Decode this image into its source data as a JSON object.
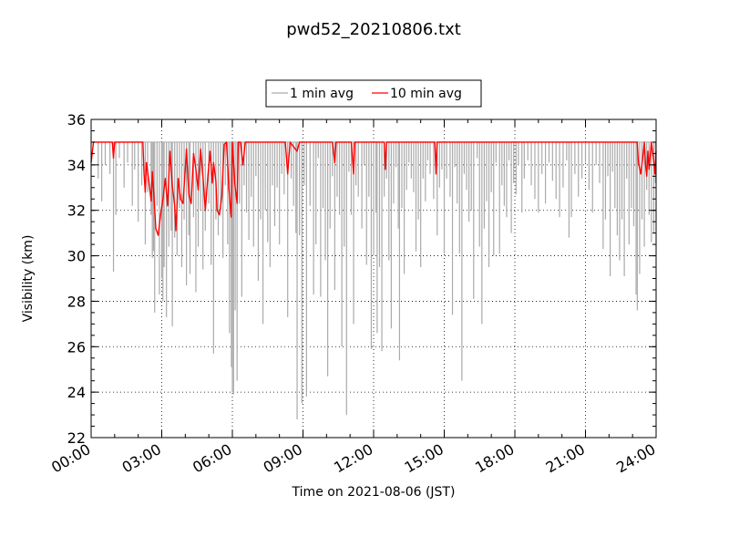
{
  "chart_data": {
    "type": "line",
    "title": "pwd52_20210806.txt",
    "xlabel": "Time on 2021-08-06 (JST)",
    "ylabel": "Visibility (km)",
    "xlim": [
      0,
      24
    ],
    "ylim": [
      22,
      36
    ],
    "x_ticks": [
      "00:00",
      "03:00",
      "06:00",
      "09:00",
      "12:00",
      "15:00",
      "18:00",
      "21:00",
      "24:00"
    ],
    "y_ticks": [
      22,
      24,
      26,
      28,
      30,
      32,
      34,
      36
    ],
    "grid": true,
    "legend": "top-center",
    "series": [
      {
        "name": "1 min avg",
        "color": "#aaaaaa",
        "baseline": 35,
        "dips": [
          [
            0.3,
            33.4
          ],
          [
            0.45,
            32.4
          ],
          [
            0.6,
            34.0
          ],
          [
            0.8,
            33.6
          ],
          [
            0.95,
            29.3
          ],
          [
            1.05,
            31.8
          ],
          [
            1.2,
            34.3
          ],
          [
            1.4,
            33.0
          ],
          [
            1.55,
            34.1
          ],
          [
            1.75,
            32.2
          ],
          [
            1.85,
            33.8
          ],
          [
            2.0,
            31.5
          ],
          [
            2.15,
            33.1
          ],
          [
            2.3,
            30.5
          ],
          [
            2.4,
            32.8
          ],
          [
            2.55,
            31.8
          ],
          [
            2.6,
            29.9
          ],
          [
            2.65,
            30.2
          ],
          [
            2.7,
            27.5
          ],
          [
            2.8,
            32.2
          ],
          [
            2.9,
            28.3
          ],
          [
            3.0,
            29.0
          ],
          [
            3.05,
            28.0
          ],
          [
            3.1,
            29.5
          ],
          [
            3.2,
            27.3
          ],
          [
            3.3,
            30.4
          ],
          [
            3.4,
            31.1
          ],
          [
            3.45,
            26.9
          ],
          [
            3.55,
            30.8
          ],
          [
            3.65,
            30.0
          ],
          [
            3.75,
            32.1
          ],
          [
            3.85,
            29.5
          ],
          [
            3.95,
            31.6
          ],
          [
            4.05,
            28.7
          ],
          [
            4.15,
            30.9
          ],
          [
            4.2,
            29.2
          ],
          [
            4.35,
            31.7
          ],
          [
            4.45,
            28.4
          ],
          [
            4.55,
            30.4
          ],
          [
            4.65,
            32.0
          ],
          [
            4.75,
            29.4
          ],
          [
            4.85,
            31.1
          ],
          [
            5.0,
            32.3
          ],
          [
            5.1,
            29.6
          ],
          [
            5.2,
            25.7
          ],
          [
            5.3,
            31.6
          ],
          [
            5.4,
            30.9
          ],
          [
            5.5,
            32.0
          ],
          [
            5.6,
            29.9
          ],
          [
            5.7,
            33.1
          ],
          [
            5.8,
            30.5
          ],
          [
            5.88,
            26.6
          ],
          [
            5.96,
            25.1
          ],
          [
            6.0,
            24.0
          ],
          [
            6.05,
            23.9
          ],
          [
            6.12,
            27.6
          ],
          [
            6.2,
            24.5
          ],
          [
            6.3,
            32.3
          ],
          [
            6.4,
            28.2
          ],
          [
            6.5,
            33.1
          ],
          [
            6.6,
            31.9
          ],
          [
            6.7,
            30.7
          ],
          [
            6.8,
            32.6
          ],
          [
            6.9,
            30.4
          ],
          [
            7.0,
            33.5
          ],
          [
            7.1,
            28.9
          ],
          [
            7.2,
            31.6
          ],
          [
            7.3,
            27.0
          ],
          [
            7.4,
            32.0
          ],
          [
            7.5,
            30.6
          ],
          [
            7.6,
            29.5
          ],
          [
            7.7,
            33.1
          ],
          [
            7.8,
            31.3
          ],
          [
            7.9,
            33.0
          ],
          [
            8.0,
            30.5
          ],
          [
            8.1,
            33.6
          ],
          [
            8.2,
            32.7
          ],
          [
            8.35,
            27.3
          ],
          [
            8.5,
            33.4
          ],
          [
            8.6,
            32.2
          ],
          [
            8.7,
            31.0
          ],
          [
            8.75,
            22.8
          ],
          [
            8.85,
            30.9
          ],
          [
            8.95,
            23.5
          ],
          [
            9.05,
            33.1
          ],
          [
            9.15,
            23.8
          ],
          [
            9.3,
            32.2
          ],
          [
            9.45,
            28.3
          ],
          [
            9.55,
            30.5
          ],
          [
            9.65,
            34.3
          ],
          [
            9.75,
            28.2
          ],
          [
            9.85,
            32.1
          ],
          [
            9.95,
            29.8
          ],
          [
            10.05,
            24.7
          ],
          [
            10.15,
            31.2
          ],
          [
            10.25,
            33.5
          ],
          [
            10.35,
            28.5
          ],
          [
            10.45,
            32.6
          ],
          [
            10.55,
            31.8
          ],
          [
            10.65,
            26.0
          ],
          [
            10.75,
            30.4
          ],
          [
            10.85,
            23.0
          ],
          [
            10.95,
            33.7
          ],
          [
            11.05,
            31.8
          ],
          [
            11.15,
            27.0
          ],
          [
            11.25,
            33.1
          ],
          [
            11.35,
            32.6
          ],
          [
            11.5,
            31.2
          ],
          [
            11.6,
            34.0
          ],
          [
            11.7,
            29.6
          ],
          [
            11.8,
            32.6
          ],
          [
            11.9,
            25.9
          ],
          [
            12.0,
            30.0
          ],
          [
            12.1,
            31.9
          ],
          [
            12.15,
            26.6
          ],
          [
            12.25,
            29.5
          ],
          [
            12.35,
            25.8
          ],
          [
            12.45,
            32.6
          ],
          [
            12.55,
            33.4
          ],
          [
            12.65,
            29.8
          ],
          [
            12.75,
            26.8
          ],
          [
            12.85,
            32.3
          ],
          [
            12.95,
            33.9
          ],
          [
            13.05,
            31.2
          ],
          [
            13.1,
            25.4
          ],
          [
            13.2,
            32.1
          ],
          [
            13.3,
            29.2
          ],
          [
            13.4,
            32.9
          ],
          [
            13.5,
            34.1
          ],
          [
            13.6,
            33.4
          ],
          [
            13.7,
            32.8
          ],
          [
            13.8,
            30.2
          ],
          [
            13.9,
            31.6
          ],
          [
            14.0,
            29.5
          ],
          [
            14.1,
            33.4
          ],
          [
            14.2,
            32.4
          ],
          [
            14.3,
            34.2
          ],
          [
            14.4,
            33.6
          ],
          [
            14.55,
            32.5
          ],
          [
            14.7,
            30.9
          ],
          [
            14.8,
            33.0
          ],
          [
            14.9,
            33.8
          ],
          [
            15.0,
            30.1
          ],
          [
            15.1,
            33.4
          ],
          [
            15.25,
            32.6
          ],
          [
            15.35,
            27.4
          ],
          [
            15.45,
            33.9
          ],
          [
            15.55,
            32.3
          ],
          [
            15.65,
            30.1
          ],
          [
            15.75,
            24.5
          ],
          [
            15.85,
            33.6
          ],
          [
            15.95,
            32.9
          ],
          [
            16.05,
            31.5
          ],
          [
            16.15,
            32.0
          ],
          [
            16.25,
            28.1
          ],
          [
            16.4,
            34.3
          ],
          [
            16.5,
            30.4
          ],
          [
            16.6,
            27.0
          ],
          [
            16.7,
            31.2
          ],
          [
            16.8,
            32.4
          ],
          [
            16.9,
            29.5
          ],
          [
            17.0,
            32.8
          ],
          [
            17.1,
            30.0
          ],
          [
            17.2,
            34.1
          ],
          [
            17.35,
            30.1
          ],
          [
            17.45,
            33.1
          ],
          [
            17.55,
            32.2
          ],
          [
            17.65,
            31.7
          ],
          [
            17.75,
            34.2
          ],
          [
            17.85,
            31.0
          ],
          [
            17.95,
            33.2
          ],
          [
            18.05,
            32.7
          ],
          [
            18.15,
            34.0
          ],
          [
            18.3,
            31.9
          ],
          [
            18.4,
            33.4
          ],
          [
            18.55,
            34.2
          ],
          [
            18.7,
            33.1
          ],
          [
            18.85,
            32.5
          ],
          [
            19.0,
            31.9
          ],
          [
            19.15,
            33.6
          ],
          [
            19.3,
            32.3
          ],
          [
            19.45,
            34.1
          ],
          [
            19.6,
            33.3
          ],
          [
            19.75,
            32.5
          ],
          [
            19.9,
            31.7
          ],
          [
            20.05,
            33.0
          ],
          [
            20.2,
            34.2
          ],
          [
            20.3,
            30.8
          ],
          [
            20.4,
            31.7
          ],
          [
            20.55,
            33.6
          ],
          [
            20.7,
            32.6
          ],
          [
            20.85,
            33.4
          ],
          [
            21.0,
            34.1
          ],
          [
            21.15,
            32.9
          ],
          [
            21.3,
            31.9
          ],
          [
            21.45,
            34.0
          ],
          [
            21.6,
            33.2
          ],
          [
            21.75,
            30.3
          ],
          [
            21.85,
            31.6
          ],
          [
            21.95,
            33.5
          ],
          [
            22.05,
            29.1
          ],
          [
            22.15,
            33.7
          ],
          [
            22.25,
            32.1
          ],
          [
            22.35,
            30.9
          ],
          [
            22.45,
            29.8
          ],
          [
            22.55,
            31.6
          ],
          [
            22.65,
            29.1
          ],
          [
            22.75,
            33.4
          ],
          [
            22.85,
            30.5
          ],
          [
            22.95,
            32.1
          ],
          [
            23.05,
            31.3
          ],
          [
            23.15,
            28.3
          ],
          [
            23.2,
            27.6
          ],
          [
            23.3,
            29.2
          ],
          [
            23.4,
            31.6
          ],
          [
            23.5,
            30.4
          ],
          [
            23.6,
            32.9
          ],
          [
            23.7,
            31.8
          ],
          [
            23.8,
            30.6
          ],
          [
            23.9,
            31.0
          ],
          [
            23.97,
            33.2
          ]
        ]
      },
      {
        "name": "10 min avg",
        "color": "#ff0000",
        "points": [
          [
            0.0,
            34.1
          ],
          [
            0.1,
            35.0
          ],
          [
            0.9,
            35.0
          ],
          [
            0.95,
            34.3
          ],
          [
            1.0,
            35.0
          ],
          [
            2.2,
            35.0
          ],
          [
            2.25,
            33.6
          ],
          [
            2.3,
            32.8
          ],
          [
            2.35,
            34.1
          ],
          [
            2.45,
            33.3
          ],
          [
            2.55,
            32.4
          ],
          [
            2.6,
            33.7
          ],
          [
            2.65,
            32.9
          ],
          [
            2.75,
            31.2
          ],
          [
            2.85,
            30.9
          ],
          [
            2.95,
            31.8
          ],
          [
            3.05,
            32.5
          ],
          [
            3.15,
            33.4
          ],
          [
            3.25,
            32.2
          ],
          [
            3.35,
            34.6
          ],
          [
            3.45,
            33.1
          ],
          [
            3.55,
            32.2
          ],
          [
            3.6,
            31.1
          ],
          [
            3.7,
            33.4
          ],
          [
            3.8,
            32.5
          ],
          [
            3.9,
            32.3
          ],
          [
            4.0,
            33.8
          ],
          [
            4.05,
            34.7
          ],
          [
            4.15,
            32.7
          ],
          [
            4.25,
            32.3
          ],
          [
            4.35,
            34.5
          ],
          [
            4.45,
            33.8
          ],
          [
            4.55,
            32.9
          ],
          [
            4.65,
            34.7
          ],
          [
            4.75,
            33.5
          ],
          [
            4.85,
            32.0
          ],
          [
            4.95,
            33.4
          ],
          [
            5.05,
            34.6
          ],
          [
            5.15,
            33.2
          ],
          [
            5.2,
            34.1
          ],
          [
            5.3,
            33.3
          ],
          [
            5.35,
            32.0
          ],
          [
            5.45,
            31.8
          ],
          [
            5.55,
            32.6
          ],
          [
            5.65,
            34.9
          ],
          [
            5.75,
            35.0
          ],
          [
            5.8,
            34.1
          ],
          [
            5.85,
            33.0
          ],
          [
            5.95,
            31.7
          ],
          [
            6.0,
            35.0
          ],
          [
            6.1,
            33.2
          ],
          [
            6.2,
            32.3
          ],
          [
            6.25,
            35.0
          ],
          [
            6.35,
            35.0
          ],
          [
            6.45,
            34.0
          ],
          [
            6.55,
            35.0
          ],
          [
            8.25,
            35.0
          ],
          [
            8.35,
            33.6
          ],
          [
            8.45,
            35.0
          ],
          [
            8.75,
            34.6
          ],
          [
            8.85,
            35.0
          ],
          [
            10.25,
            35.0
          ],
          [
            10.35,
            34.1
          ],
          [
            10.4,
            35.0
          ],
          [
            11.05,
            35.0
          ],
          [
            11.15,
            33.6
          ],
          [
            11.2,
            35.0
          ],
          [
            12.45,
            35.0
          ],
          [
            12.5,
            33.8
          ],
          [
            12.55,
            35.0
          ],
          [
            14.6,
            35.0
          ],
          [
            14.65,
            33.6
          ],
          [
            14.7,
            35.0
          ],
          [
            23.2,
            35.0
          ],
          [
            23.25,
            34.1
          ],
          [
            23.35,
            33.6
          ],
          [
            23.45,
            34.5
          ],
          [
            23.5,
            35.0
          ],
          [
            23.55,
            34.0
          ],
          [
            23.6,
            33.5
          ],
          [
            23.65,
            34.6
          ],
          [
            23.7,
            33.8
          ],
          [
            23.8,
            35.0
          ],
          [
            23.9,
            34.2
          ],
          [
            23.95,
            33.6
          ],
          [
            24.0,
            34.6
          ]
        ]
      }
    ]
  }
}
